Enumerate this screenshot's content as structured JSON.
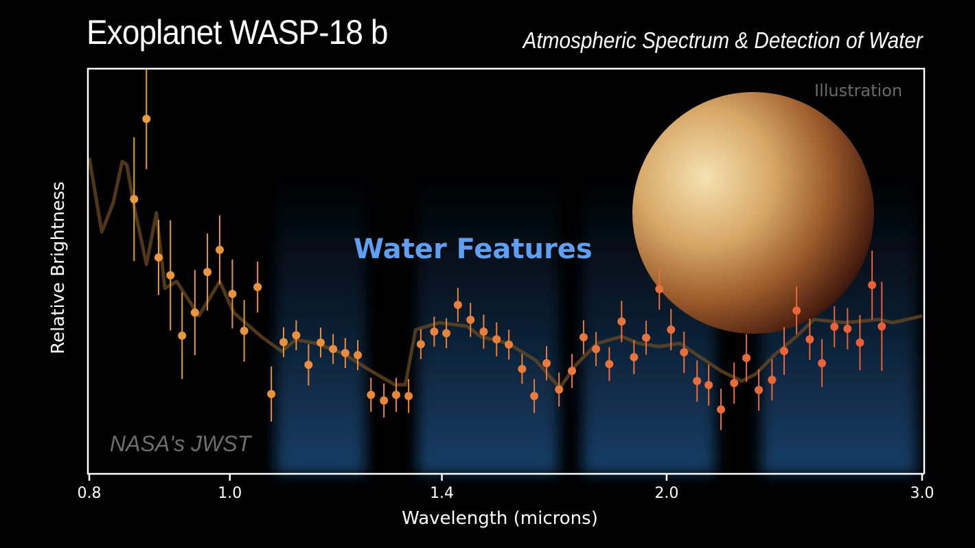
{
  "header": {
    "title": "Exoplanet WASP-18 b",
    "subtitle": "Atmospheric Spectrum & Detection of Water"
  },
  "labels": {
    "illustration": "Illustration",
    "water_features": "Water Features",
    "credit": "NASA's JWST"
  },
  "colors": {
    "background": "#000000",
    "water_band": "#1c4a7a",
    "water_text": "#5f9ff2",
    "points_short": "#e8a040",
    "points_long": "#ea5a38",
    "model": "#6b4a22",
    "frame": "#ffffff"
  },
  "chart_data": {
    "type": "scatter",
    "title": "Exoplanet WASP-18 b",
    "xlabel": "Wavelength (microns)",
    "ylabel": "Relative Brightness",
    "x_scale": "log",
    "xlim": [
      0.8,
      3.0
    ],
    "ylim": [
      0,
      100
    ],
    "x_ticks": [
      "0.8",
      "1.0",
      "1.4",
      "2.0",
      "3.0"
    ],
    "x_tick_values": [
      0.8,
      1.0,
      1.4,
      2.0,
      3.0
    ],
    "grid": false,
    "water_bands": [
      [
        1.066,
        1.251
      ],
      [
        1.335,
        1.7
      ],
      [
        1.734,
        2.18
      ],
      [
        2.303,
        3.0
      ]
    ],
    "points": [
      {
        "x": 0.859,
        "y": 67.8,
        "err": 15.3
      },
      {
        "x": 0.876,
        "y": 87.6,
        "err": 12.4
      },
      {
        "x": 0.893,
        "y": 53.4,
        "err": 9.3
      },
      {
        "x": 0.91,
        "y": 49.0,
        "err": 13.6
      },
      {
        "x": 0.927,
        "y": 34.1,
        "err": 10.7
      },
      {
        "x": 0.946,
        "y": 39.8,
        "err": 10.5
      },
      {
        "x": 0.965,
        "y": 49.8,
        "err": 9.5
      },
      {
        "x": 0.984,
        "y": 55.3,
        "err": 8.5
      },
      {
        "x": 1.004,
        "y": 44.4,
        "err": 8.5
      },
      {
        "x": 1.023,
        "y": 35.3,
        "err": 7.6
      },
      {
        "x": 1.045,
        "y": 46.1,
        "err": 6.3
      },
      {
        "x": 1.068,
        "y": 19.7,
        "err": 6.8
      },
      {
        "x": 1.089,
        "y": 32.5,
        "err": 3.7
      },
      {
        "x": 1.111,
        "y": 34.2,
        "err": 3.7
      },
      {
        "x": 1.133,
        "y": 26.9,
        "err": 5.1
      },
      {
        "x": 1.155,
        "y": 32.4,
        "err": 3.7
      },
      {
        "x": 1.178,
        "y": 30.8,
        "err": 3.7
      },
      {
        "x": 1.201,
        "y": 29.8,
        "err": 3.7
      },
      {
        "x": 1.225,
        "y": 29.3,
        "err": 3.7
      },
      {
        "x": 1.251,
        "y": 19.5,
        "err": 4.2
      },
      {
        "x": 1.277,
        "y": 18.1,
        "err": 4.2
      },
      {
        "x": 1.302,
        "y": 19.5,
        "err": 4.2
      },
      {
        "x": 1.328,
        "y": 19.2,
        "err": 4.2
      },
      {
        "x": 1.354,
        "y": 32.0,
        "err": 3.7
      },
      {
        "x": 1.383,
        "y": 35.1,
        "err": 3.7
      },
      {
        "x": 1.41,
        "y": 34.7,
        "err": 3.7
      },
      {
        "x": 1.436,
        "y": 41.7,
        "err": 4.2
      },
      {
        "x": 1.465,
        "y": 38.0,
        "err": 4.2
      },
      {
        "x": 1.496,
        "y": 35.1,
        "err": 4.2
      },
      {
        "x": 1.527,
        "y": 33.2,
        "err": 4.2
      },
      {
        "x": 1.557,
        "y": 31.9,
        "err": 3.7
      },
      {
        "x": 1.59,
        "y": 25.9,
        "err": 3.7
      },
      {
        "x": 1.621,
        "y": 19.2,
        "err": 4.2
      },
      {
        "x": 1.653,
        "y": 27.3,
        "err": 4.2
      },
      {
        "x": 1.686,
        "y": 20.8,
        "err": 4.2
      },
      {
        "x": 1.721,
        "y": 25.4,
        "err": 4.2
      },
      {
        "x": 1.753,
        "y": 33.7,
        "err": 4.2
      },
      {
        "x": 1.788,
        "y": 30.8,
        "err": 4.2
      },
      {
        "x": 1.826,
        "y": 27.1,
        "err": 4.2
      },
      {
        "x": 1.862,
        "y": 37.6,
        "err": 5.1
      },
      {
        "x": 1.899,
        "y": 28.8,
        "err": 4.2
      },
      {
        "x": 1.936,
        "y": 33.6,
        "err": 4.2
      },
      {
        "x": 1.977,
        "y": 45.6,
        "err": 5.1
      },
      {
        "x": 2.014,
        "y": 35.6,
        "err": 5.1
      },
      {
        "x": 2.056,
        "y": 30.0,
        "err": 5.1
      },
      {
        "x": 2.099,
        "y": 22.9,
        "err": 5.1
      },
      {
        "x": 2.138,
        "y": 21.9,
        "err": 5.1
      },
      {
        "x": 2.18,
        "y": 15.9,
        "err": 5.1
      },
      {
        "x": 2.226,
        "y": 22.4,
        "err": 5.1
      },
      {
        "x": 2.27,
        "y": 28.6,
        "err": 5.9
      },
      {
        "x": 2.315,
        "y": 20.7,
        "err": 5.1
      },
      {
        "x": 2.364,
        "y": 23.2,
        "err": 5.1
      },
      {
        "x": 2.41,
        "y": 30.3,
        "err": 5.9
      },
      {
        "x": 2.458,
        "y": 40.3,
        "err": 5.9
      },
      {
        "x": 2.51,
        "y": 33.2,
        "err": 5.1
      },
      {
        "x": 2.559,
        "y": 27.3,
        "err": 5.9
      },
      {
        "x": 2.61,
        "y": 36.3,
        "err": 5.1
      },
      {
        "x": 2.665,
        "y": 35.8,
        "err": 5.1
      },
      {
        "x": 2.718,
        "y": 32.4,
        "err": 6.8
      },
      {
        "x": 2.771,
        "y": 46.6,
        "err": 8.5
      },
      {
        "x": 2.814,
        "y": 36.4,
        "err": 11.0
      }
    ],
    "model": {
      "x": [
        0.8,
        0.816,
        0.831,
        0.843,
        0.849,
        0.859,
        0.876,
        0.89,
        0.902,
        0.919,
        0.932,
        0.952,
        0.984,
        1.006,
        1.051,
        1.086,
        1.11,
        1.147,
        1.197,
        1.251,
        1.299,
        1.321,
        1.343,
        1.395,
        1.457,
        1.489,
        1.555,
        1.625,
        1.688,
        1.734,
        1.792,
        1.862,
        1.913,
        1.977,
        2.043,
        2.11,
        2.18,
        2.253,
        2.303,
        2.379,
        2.458,
        2.526,
        2.653,
        2.802,
        2.864,
        3.0
      ],
      "y": [
        78.0,
        59.7,
        66.9,
        77.1,
        76.3,
        66.1,
        51.7,
        64.4,
        45.8,
        47.5,
        44.1,
        39.0,
        47.5,
        39.8,
        33.9,
        30.2,
        33.1,
        32.2,
        29.7,
        25.4,
        22.0,
        22.0,
        35.6,
        37.3,
        36.4,
        33.9,
        32.2,
        28.0,
        21.2,
        27.1,
        32.2,
        33.9,
        32.2,
        31.4,
        32.2,
        28.8,
        25.4,
        22.9,
        24.6,
        29.7,
        33.9,
        38.1,
        37.3,
        38.1,
        37.3,
        39.0
      ]
    }
  }
}
